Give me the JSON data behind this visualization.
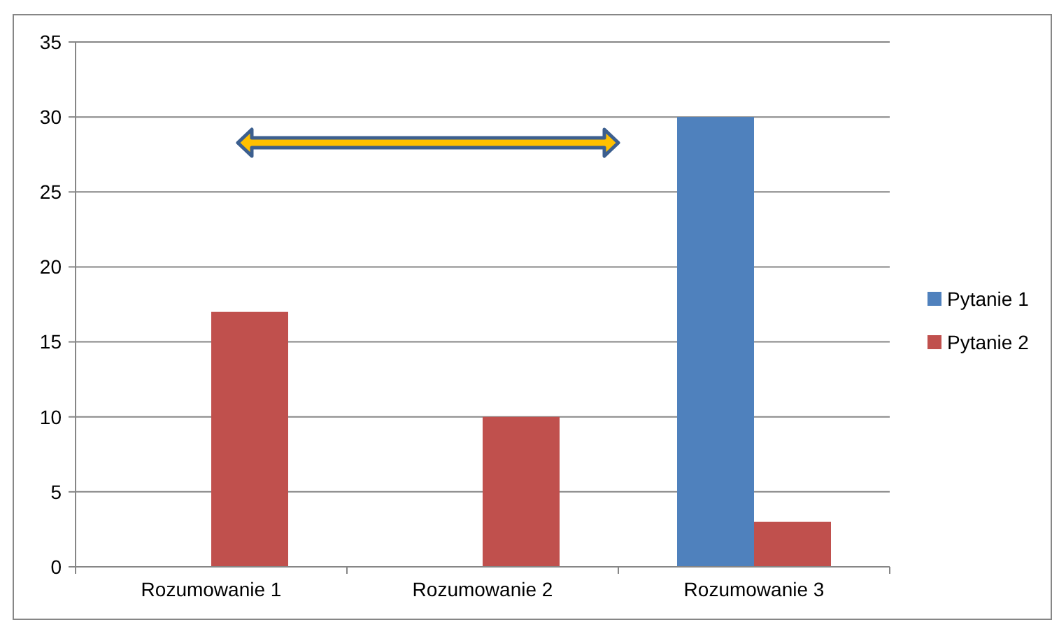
{
  "chart_data": {
    "type": "bar",
    "categories": [
      "Rozumowanie 1",
      "Rozumowanie 2",
      "Rozumowanie 3"
    ],
    "series": [
      {
        "name": "Pytanie 1",
        "color": "#4f81bd",
        "values": [
          null,
          null,
          30
        ]
      },
      {
        "name": "Pytanie 2",
        "color": "#c0504d",
        "values": [
          17,
          10,
          3
        ]
      }
    ],
    "ylim": [
      0,
      35
    ],
    "yticks": [
      0,
      5,
      10,
      15,
      20,
      25,
      30,
      35
    ],
    "grid": "y",
    "legend": "right"
  }
}
